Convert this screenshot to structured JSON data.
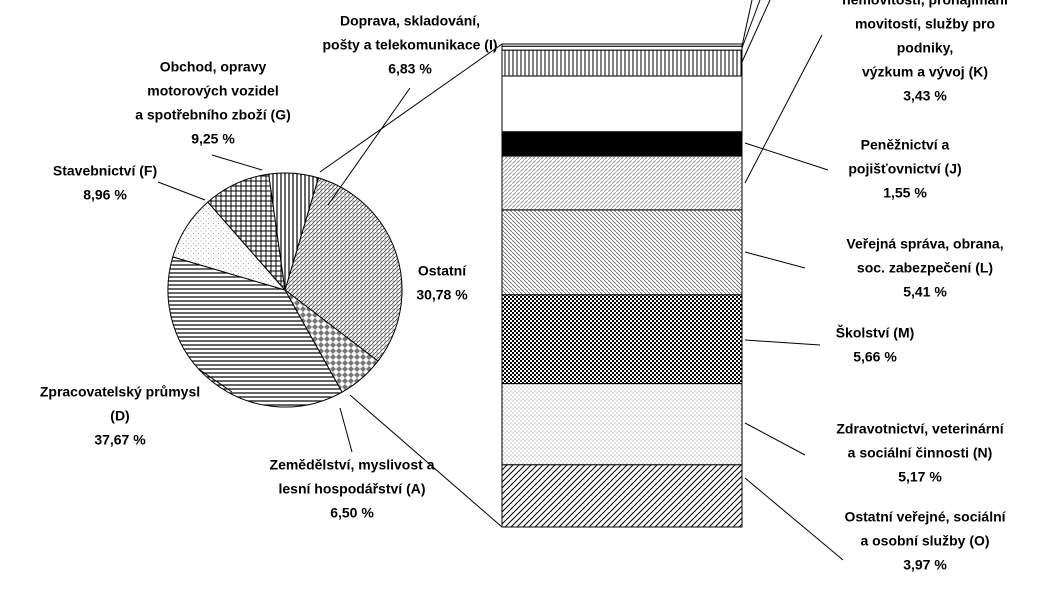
{
  "chart_data": [
    {
      "type": "pie",
      "categories": [
        [
          "Ostatní"
        ],
        [
          "Zemědělství, myslivost a",
          "lesní hospodářství (A)"
        ],
        [
          "Zpracovatelský průmysl",
          "(D)"
        ],
        [
          "Stavebnictví (F)"
        ],
        [
          "Obchod, opravy",
          "motorových vozidel",
          "a spotřebního zboží (G)"
        ],
        [
          "Doprava, skladování,",
          "pošty a telekomunikace (I)"
        ]
      ],
      "values": [
        30.78,
        6.5,
        37.67,
        8.96,
        9.25,
        6.83
      ],
      "value_labels": [
        "30,78 %",
        "6,50 %",
        "37,67 %",
        "8,96 %",
        "9,25 %",
        "6,83 %"
      ]
    },
    {
      "type": "bar",
      "categories": [
        [
          "Ostatní veřejné, sociální",
          "a osobní služby (O)"
        ],
        [
          "Zdravotnictví, veterinární",
          "a sociální činnosti (N)"
        ],
        [
          "Školství (M)"
        ],
        [
          "Veřejná správa, obrana,",
          "soc. zabezpečení (L)"
        ],
        [
          "nemovitostí, pronajímání",
          "movitostí, služby pro",
          "podniky,",
          "výzkum a vývoj (K)"
        ],
        [
          "Peněžnictví a",
          "pojišťovnictví (J)"
        ],
        null,
        null,
        null,
        null
      ],
      "values": [
        3.97,
        5.17,
        5.66,
        5.41,
        3.43,
        1.55,
        3.55,
        1.65,
        0.25,
        0.14
      ],
      "value_labels": [
        "3,97 %",
        "5,17 %",
        "5,66 %",
        "5,41 %",
        "3,43 %",
        "1,55 %",
        null,
        null,
        null,
        null
      ]
    }
  ]
}
